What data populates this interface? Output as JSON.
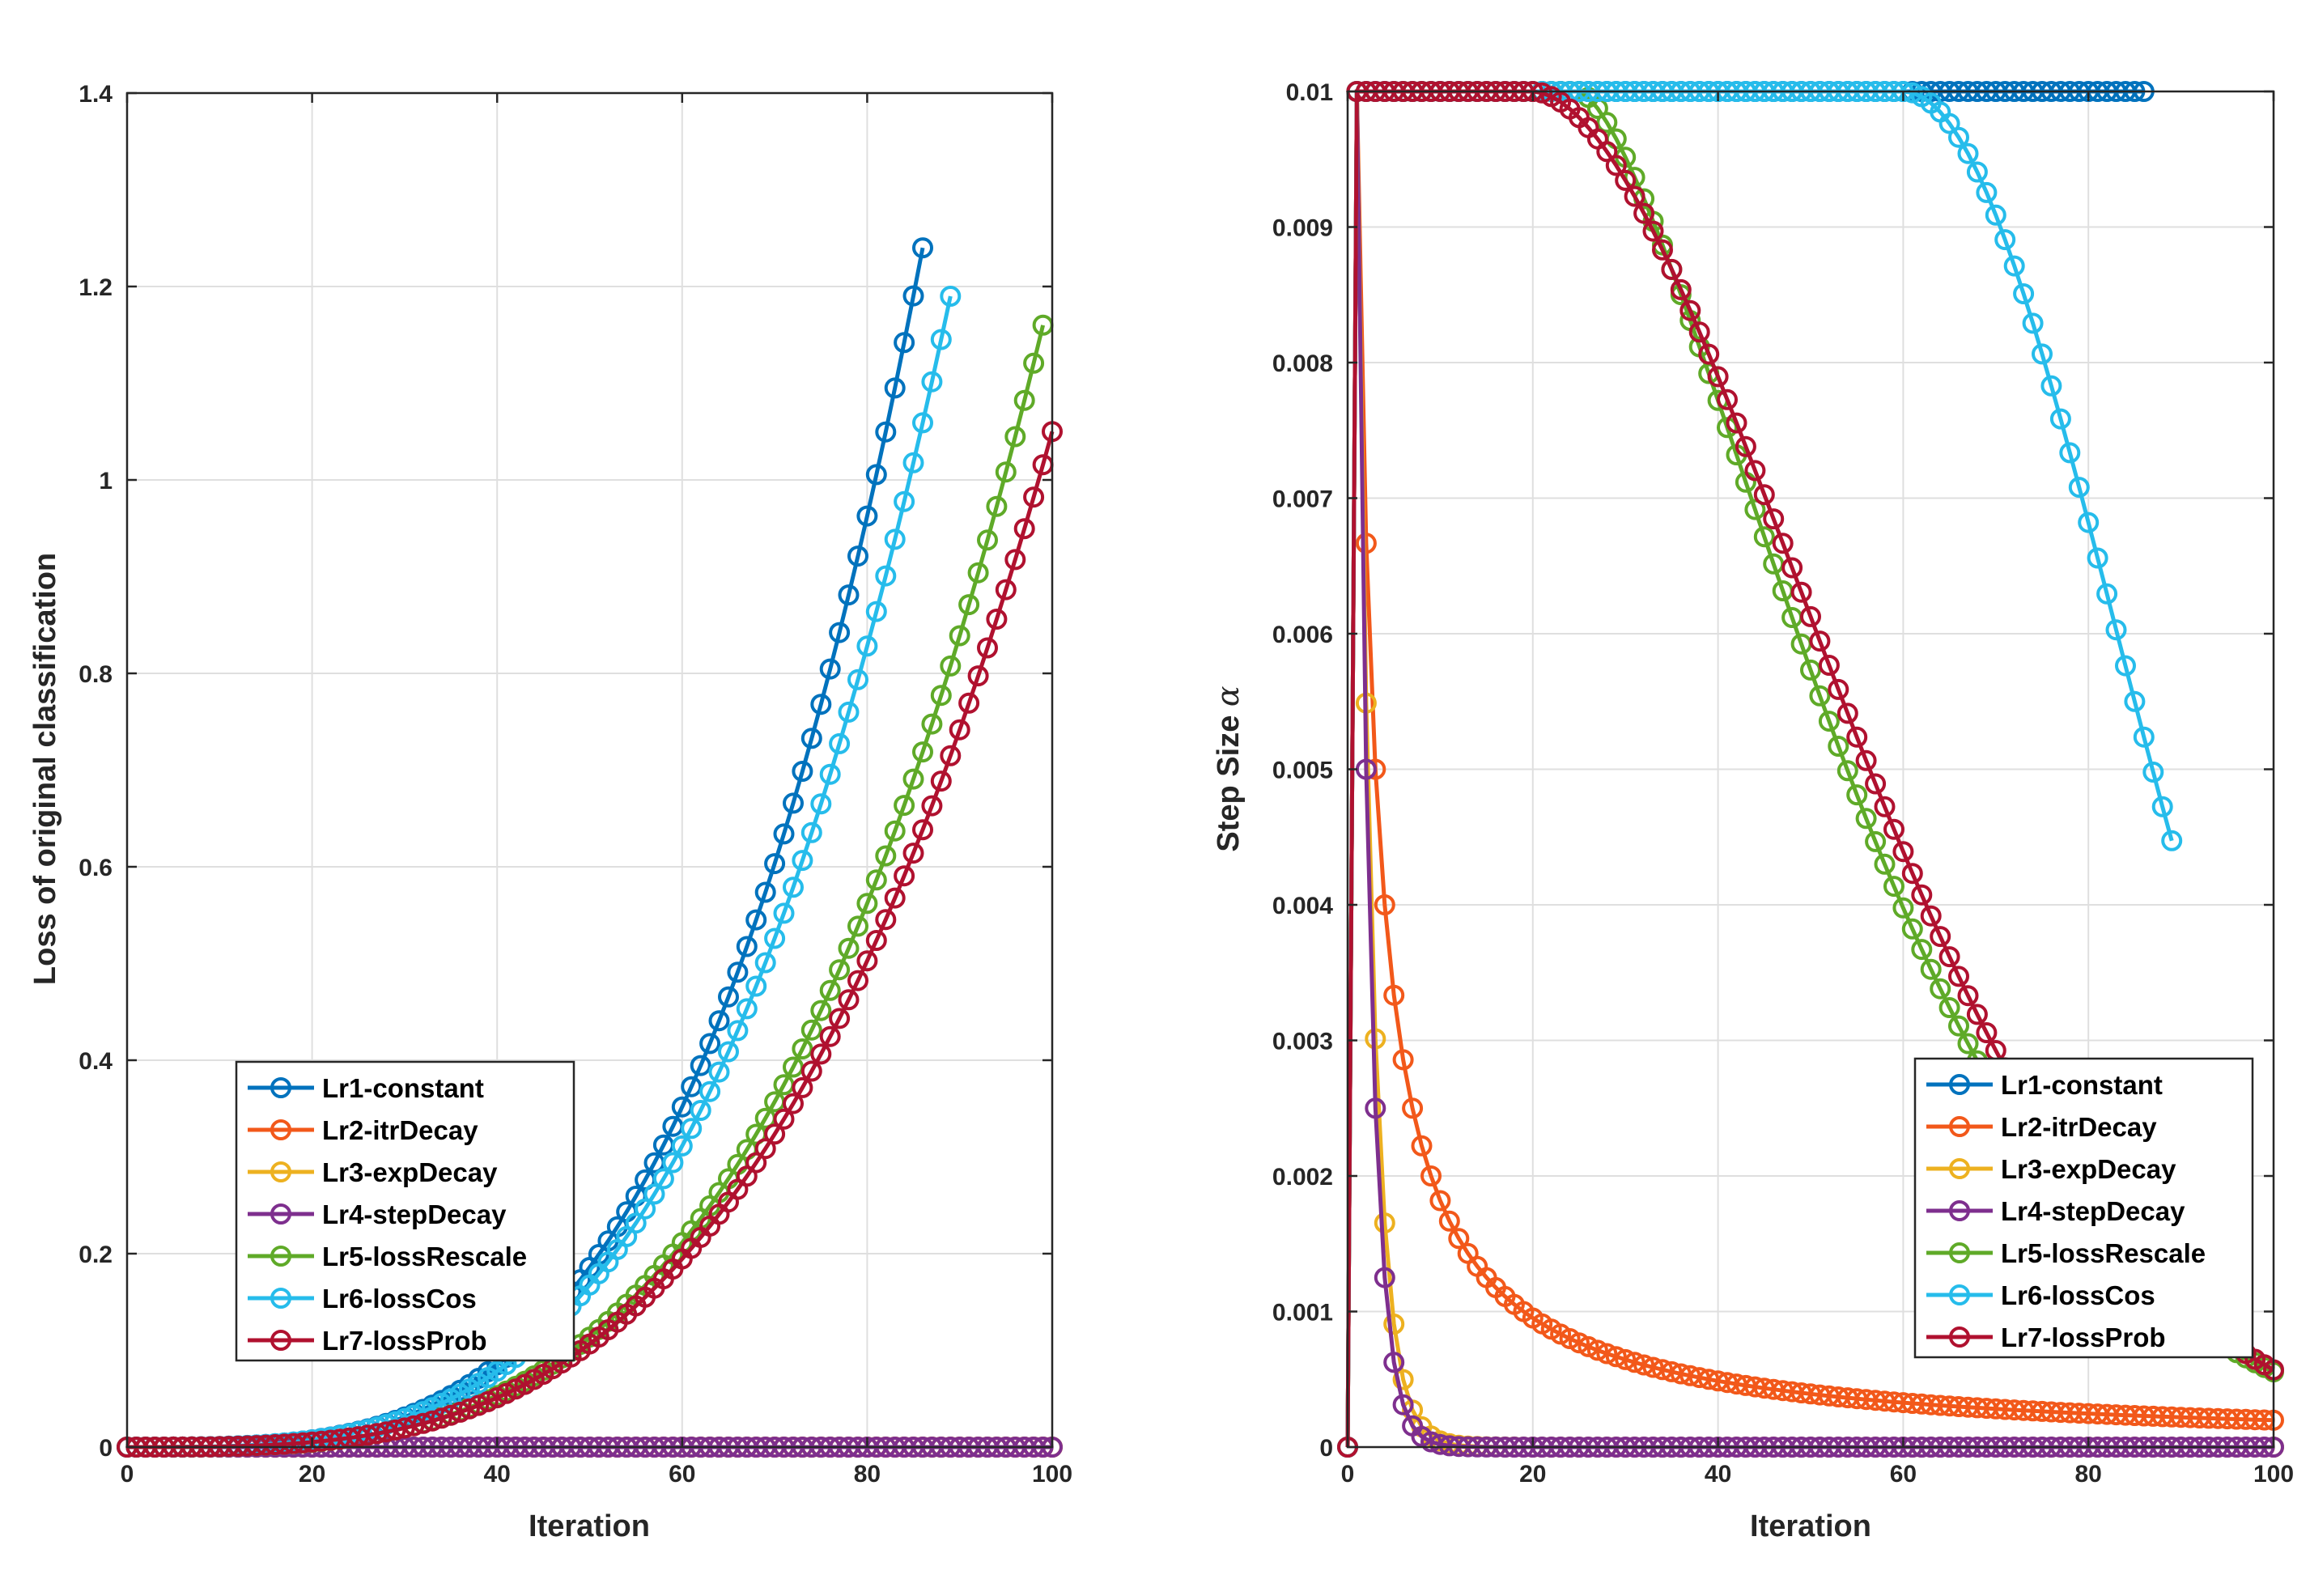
{
  "colors": {
    "Lr1-constant": "#0072BD",
    "Lr2-itrDecay": "#F2581A",
    "Lr3-expDecay": "#EDB120",
    "Lr4-stepDecay": "#7E2F8E",
    "Lr5-lossRescale": "#5FAA28",
    "Lr6-lossCos": "#26BCEB",
    "Lr7-lossProb": "#B0112F"
  },
  "chart_data": [
    {
      "type": "line",
      "marker": "circle",
      "xlabel": "Iteration",
      "ylabel": "Loss of original classification",
      "xlim": [
        0,
        100
      ],
      "ylim": [
        0,
        1.4
      ],
      "xticks": [
        0,
        20,
        40,
        60,
        80,
        100
      ],
      "yticks": [
        0,
        0.2,
        0.4,
        0.6,
        0.8,
        1,
        1.2,
        1.4
      ],
      "xtick_labels": [
        "0",
        "20",
        "40",
        "60",
        "80",
        "100"
      ],
      "ytick_labels": [
        "0",
        "0.2",
        "0.4",
        "0.6",
        "0.8",
        "1",
        "1.2",
        "1.4"
      ],
      "grid": true,
      "legend_position": "bottom-left",
      "legend": [
        "Lr1-constant",
        "Lr2-itrDecay",
        "Lr3-expDecay",
        "Lr4-stepDecay",
        "Lr5-lossRescale",
        "Lr6-lossCos",
        "Lr7-lossProb"
      ],
      "series": [
        {
          "name": "Lr1-constant",
          "model": "power",
          "n_points": 87,
          "x_start": 0,
          "x_end": 86,
          "y_end": 1.24,
          "exponent": 3.5
        },
        {
          "name": "Lr2-itrDecay",
          "model": "zero",
          "n_points": 101,
          "x_start": 0,
          "x_end": 100
        },
        {
          "name": "Lr3-expDecay",
          "model": "zero",
          "n_points": 101,
          "x_start": 0,
          "x_end": 100
        },
        {
          "name": "Lr4-stepDecay",
          "model": "zero",
          "n_points": 101,
          "x_start": 0,
          "x_end": 100
        },
        {
          "name": "Lr5-lossRescale",
          "model": "power",
          "n_points": 100,
          "x_start": 0,
          "x_end": 99,
          "y_end": 1.16,
          "exponent": 3.4
        },
        {
          "name": "Lr6-lossCos",
          "model": "power",
          "n_points": 90,
          "x_start": 0,
          "x_end": 89,
          "y_end": 1.19,
          "exponent": 3.4
        },
        {
          "name": "Lr7-lossProb",
          "model": "power",
          "n_points": 101,
          "x_start": 0,
          "x_end": 100,
          "y_end": 1.05,
          "exponent": 3.3
        }
      ]
    },
    {
      "type": "line",
      "marker": "circle",
      "xlabel": "Iteration",
      "ylabel": "Step Size",
      "ylabel_symbol": "α",
      "xlim": [
        0,
        100
      ],
      "ylim": [
        0,
        0.01
      ],
      "xticks": [
        0,
        20,
        40,
        60,
        80,
        100
      ],
      "yticks": [
        0,
        0.001,
        0.002,
        0.003,
        0.004,
        0.005,
        0.006,
        0.007,
        0.008,
        0.009,
        0.01
      ],
      "xtick_labels": [
        "0",
        "20",
        "40",
        "60",
        "80",
        "100"
      ],
      "ytick_labels": [
        "0",
        "0.001",
        "0.002",
        "0.003",
        "0.004",
        "0.005",
        "0.006",
        "0.007",
        "0.008",
        "0.009",
        "0.01"
      ],
      "grid": true,
      "legend_position": "bottom-right",
      "legend": [
        "Lr1-constant",
        "Lr2-itrDecay",
        "Lr3-expDecay",
        "Lr4-stepDecay",
        "Lr5-lossRescale",
        "Lr6-lossCos",
        "Lr7-lossProb"
      ],
      "series": [
        {
          "name": "Lr1-constant",
          "model": "constant",
          "n_points": 87,
          "x_start": 0,
          "x_end": 86,
          "value": 0.01
        },
        {
          "name": "Lr2-itrDecay",
          "model": "inverse",
          "n_points": 101,
          "x_start": 0,
          "x_end": 100,
          "base": 0.02
        },
        {
          "name": "Lr3-expDecay",
          "model": "exp",
          "n_points": 101,
          "x_start": 0,
          "x_end": 100,
          "base": 0.01,
          "rate": 0.6
        },
        {
          "name": "Lr4-stepDecay",
          "model": "halving",
          "n_points": 101,
          "x_start": 0,
          "x_end": 100,
          "base": 0.01
        },
        {
          "name": "Lr5-lossRescale",
          "model": "gauss",
          "n_points": 101,
          "x_start": 0,
          "x_end": 100,
          "base": 0.01,
          "start": 25,
          "width": 30.5,
          "power": 1.5
        },
        {
          "name": "Lr6-lossCos",
          "model": "gauss",
          "n_points": 90,
          "x_start": 0,
          "x_end": 89,
          "base": 0.01,
          "start": 60,
          "width": 28,
          "power": 2
        },
        {
          "name": "Lr7-lossProb",
          "model": "gauss",
          "n_points": 101,
          "x_start": 0,
          "x_end": 100,
          "base": 0.01,
          "start": 20,
          "width": 38,
          "power": 1.8
        }
      ]
    }
  ]
}
